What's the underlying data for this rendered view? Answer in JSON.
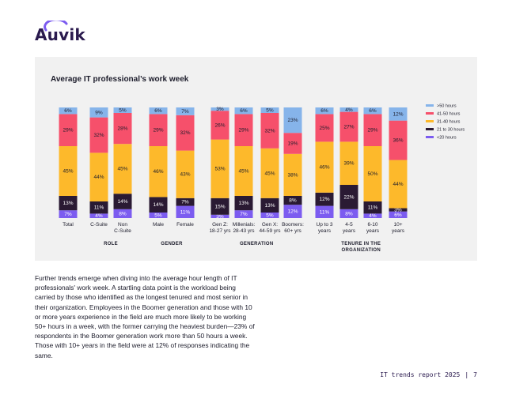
{
  "logo": {
    "text": "Auvik"
  },
  "body_text": "Further trends emerge when diving into the average hour length of IT professionals' work week. A startling data point is the workload being carried by those who identified as the longest tenured and most senior in their organization. Employees in the Boomer generation and those with 10 or more years experience in the field are much more likely to be working 50+ hours in a week, with the former carrying the heaviest burden—23% of respondents in the Boomer generation work more than 50 hours a week. Those with 10+ years in the field were at 12% of responses indicating the same.",
  "footer": {
    "report": "IT trends report 2025",
    "page": "7"
  },
  "colors": {
    "50plus": "#86b4ea",
    "41_50": "#f6506b",
    "31_40": "#fdb92b",
    "21_30": "#2a1a33",
    "lt20": "#7c5cf0"
  },
  "chart_data": {
    "type": "bar",
    "stacked": true,
    "percent": true,
    "title": "Average IT professional’s work week",
    "ylim": [
      0,
      100
    ],
    "legend_position": "right",
    "series": [
      {
        "name": "<20 hours",
        "color": "#7c5cf0",
        "values": [
          7,
          4,
          8,
          5,
          11,
          3,
          7,
          5,
          12,
          11,
          8,
          4,
          6
        ]
      },
      {
        "name": "21 to 30 hours",
        "color": "#2a1a33",
        "values": [
          13,
          11,
          14,
          14,
          7,
          15,
          13,
          13,
          8,
          12,
          22,
          11,
          3
        ]
      },
      {
        "name": "31-40 hours",
        "color": "#fdb92b",
        "values": [
          45,
          44,
          45,
          46,
          43,
          53,
          45,
          45,
          38,
          46,
          39,
          50,
          44
        ]
      },
      {
        "name": "41-50 hours",
        "color": "#f6506b",
        "values": [
          29,
          32,
          28,
          29,
          32,
          26,
          29,
          32,
          19,
          25,
          27,
          29,
          36
        ]
      },
      {
        "name": ">50 hours",
        "color": "#86b4ea",
        "values": [
          6,
          9,
          5,
          6,
          7,
          3,
          6,
          5,
          23,
          6,
          4,
          6,
          12
        ]
      }
    ],
    "categories": [
      "Total",
      "C-Suite",
      "Non C-Suite",
      "Male",
      "Female",
      "Gen Z: 18-27 yrs",
      "Millenials: 28-43 yrs",
      "Gen X: 44-59 yrs",
      "Boomers: 60+ yrs",
      "Up to 3 years",
      "4-5 years",
      "6-10 years",
      "10+ years"
    ],
    "category_lines": [
      [
        "Total"
      ],
      [
        "C-Suite"
      ],
      [
        "Non",
        "C-Suite"
      ],
      [
        "Male"
      ],
      [
        "Female"
      ],
      [
        "Gen Z:",
        "18-27 yrs"
      ],
      [
        "Millenials:",
        "28-43 yrs"
      ],
      [
        "Gen X:",
        "44-59 yrs"
      ],
      [
        "Boomers:",
        "60+ yrs"
      ],
      [
        "Up to 3",
        "years"
      ],
      [
        "4-5",
        "years"
      ],
      [
        "6-10",
        "years"
      ],
      [
        "10+",
        "years"
      ]
    ],
    "groups": [
      {
        "label": [
          "ROLE"
        ],
        "members": [
          1,
          2
        ]
      },
      {
        "label": [
          "GENDER"
        ],
        "members": [
          3,
          4
        ]
      },
      {
        "label": [
          "GENERATION"
        ],
        "members": [
          5,
          6,
          7,
          8
        ]
      },
      {
        "label": [
          "TENURE IN THE",
          "ORGANIZATION"
        ],
        "members": [
          9,
          10,
          11,
          12
        ]
      }
    ]
  }
}
